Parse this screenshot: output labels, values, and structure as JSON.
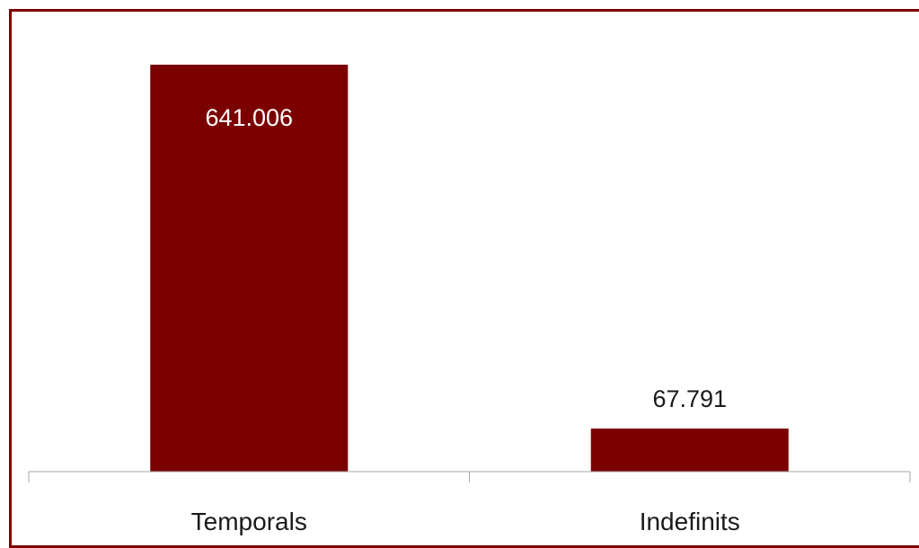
{
  "chart_data": {
    "type": "bar",
    "categories": [
      "Temporals",
      "Indefinits"
    ],
    "values": [
      641006,
      67791
    ],
    "value_labels": [
      "641.006",
      "67.791"
    ],
    "title": "",
    "xlabel": "",
    "ylabel": "",
    "ylim": [
      0,
      641006
    ],
    "grid": false,
    "legend": "none",
    "colors": {
      "bar": "#7b0000",
      "frame": "#7b0000",
      "axis": "#a6a6a6"
    }
  }
}
